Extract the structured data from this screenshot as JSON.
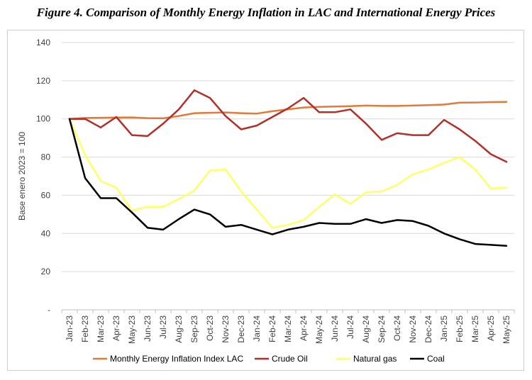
{
  "figure_title": "Figure 4. Comparison of Monthly Energy Inflation in LAC and International Energy Prices",
  "chart_data": {
    "type": "line",
    "title": "Figure 4. Comparison of Monthly Energy Inflation in LAC and International Energy Prices",
    "xlabel": "",
    "ylabel": "Base enero 2023 = 100",
    "ylim": [
      0,
      140
    ],
    "yticks": [
      0,
      20,
      40,
      60,
      80,
      100,
      120,
      140
    ],
    "ytick_labels": [
      "-",
      "20",
      "40",
      "60",
      "80",
      "100",
      "120",
      "140"
    ],
    "grid": "horizontal",
    "legend_position": "bottom",
    "categories": [
      "Jan-23",
      "Feb-23",
      "Mar-23",
      "Apr-23",
      "May-23",
      "Jun-23",
      "Jul-23",
      "Aug-23",
      "Sep-23",
      "Oct-23",
      "Nov-23",
      "Dec-23",
      "Jan-24",
      "Feb-24",
      "Mar-24",
      "Apr-24",
      "May-24",
      "Jun-24",
      "Jul-24",
      "Aug-24",
      "Sep-24",
      "Oct-24",
      "Nov-24",
      "Dec-24",
      "Jan-25",
      "Feb-25",
      "Mar-25",
      "Apr-25",
      "May-25"
    ],
    "series": [
      {
        "name": "Monthly Energy Inflation Index LAC",
        "color": "#e07b39",
        "values": [
          100,
          100.5,
          100.6,
          100.7,
          100.8,
          100.4,
          100.3,
          101.5,
          103,
          103.2,
          103.4,
          103,
          102.8,
          104,
          105,
          106,
          106.3,
          106.5,
          106.7,
          107,
          106.8,
          106.8,
          107,
          107.2,
          107.5,
          108.5,
          108.6,
          108.8,
          108.9
        ]
      },
      {
        "name": "Crude Oil",
        "color": "#b2302a",
        "values": [
          100,
          100,
          95.5,
          101,
          91.5,
          91,
          97.5,
          105,
          115,
          111,
          101.5,
          94.5,
          96.5,
          101,
          105.5,
          111,
          103.5,
          103.5,
          105,
          97.5,
          89,
          92.5,
          91.5,
          91.5,
          99.5,
          94.5,
          88.5,
          81.5,
          77.5
        ]
      },
      {
        "name": "Natural gas",
        "color": "#ffff66",
        "values": [
          100,
          81,
          67.5,
          64,
          52,
          54,
          54,
          58,
          62.5,
          73,
          73.5,
          62,
          52.5,
          43,
          44.5,
          47,
          54,
          60.5,
          55.5,
          61.5,
          62,
          65.5,
          71,
          73.5,
          77,
          80,
          73.5,
          63.5,
          64
        ]
      },
      {
        "name": "Coal",
        "color": "#000000",
        "values": [
          100,
          69,
          58.5,
          58.5,
          51,
          43,
          42,
          47.5,
          52.5,
          50,
          43.5,
          44.5,
          42,
          39.5,
          42,
          43.5,
          45.5,
          45,
          45,
          47.5,
          45.5,
          47,
          46.5,
          44,
          40,
          37,
          34.5,
          34,
          33.5
        ]
      }
    ]
  }
}
